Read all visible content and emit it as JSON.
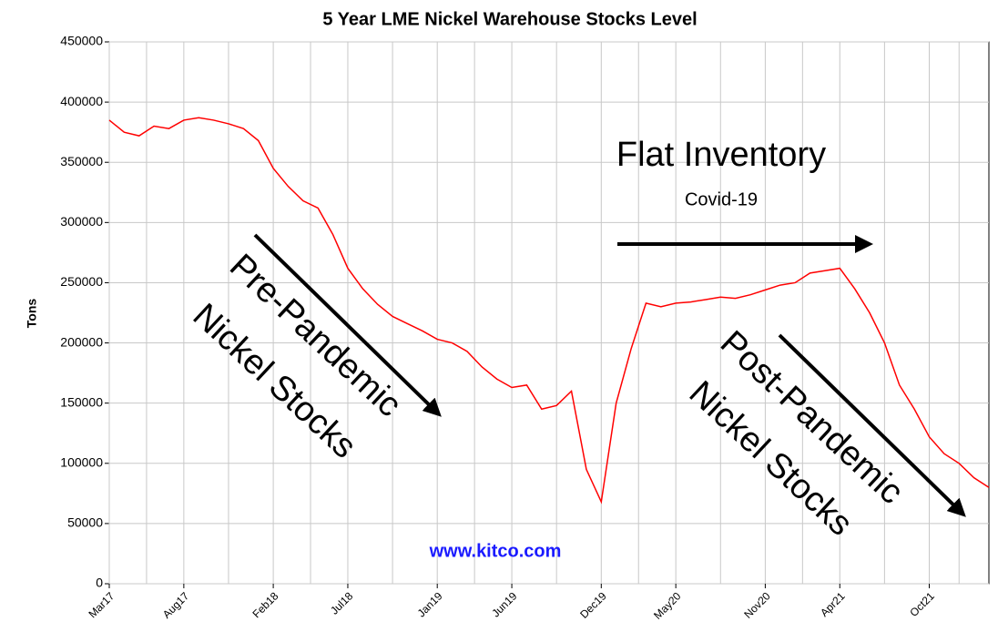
{
  "chart_data": {
    "type": "line",
    "title": "5 Year LME Nickel Warehouse Stocks Level",
    "y_label": "Tons",
    "categories": [
      "Mar17",
      null,
      null,
      null,
      null,
      "Aug17",
      null,
      null,
      null,
      null,
      null,
      "Feb18",
      null,
      null,
      null,
      null,
      "Jul18",
      null,
      null,
      null,
      null,
      null,
      "Jan19",
      null,
      null,
      null,
      null,
      "Jun19",
      null,
      null,
      null,
      null,
      null,
      "Dec19",
      null,
      null,
      null,
      null,
      "May20",
      null,
      null,
      null,
      null,
      null,
      "Nov20",
      null,
      null,
      null,
      null,
      "Apr21",
      null,
      null,
      null,
      null,
      null,
      "Oct21",
      null,
      null,
      null,
      null
    ],
    "series": [
      {
        "name": "Nickel stocks",
        "color": "#ff0000",
        "values": [
          385000,
          375000,
          372000,
          380000,
          378000,
          385000,
          387000,
          385000,
          382000,
          378000,
          368000,
          345000,
          330000,
          318000,
          312000,
          290000,
          262000,
          245000,
          232000,
          222000,
          216000,
          210000,
          203000,
          200000,
          193000,
          180000,
          170000,
          163000,
          165000,
          145000,
          148000,
          160000,
          95000,
          68000,
          150000,
          195000,
          233000,
          230000,
          233000,
          234000,
          236000,
          238000,
          237000,
          240000,
          244000,
          248000,
          250000,
          258000,
          260000,
          262000,
          245000,
          225000,
          200000,
          165000,
          145000,
          122000,
          108000,
          100000,
          88000,
          80000
        ]
      }
    ],
    "ylim": [
      0,
      450000
    ],
    "yticks": [
      0,
      50000,
      100000,
      150000,
      200000,
      250000,
      300000,
      350000,
      400000,
      450000
    ],
    "grid": true,
    "annotations": [
      "Flat Inventory",
      "Covid-19",
      "Pre-Pandemic",
      "Nickel Stocks",
      "Post-Pandemic",
      "Nickel Stocks",
      "www.kitco.com"
    ]
  }
}
